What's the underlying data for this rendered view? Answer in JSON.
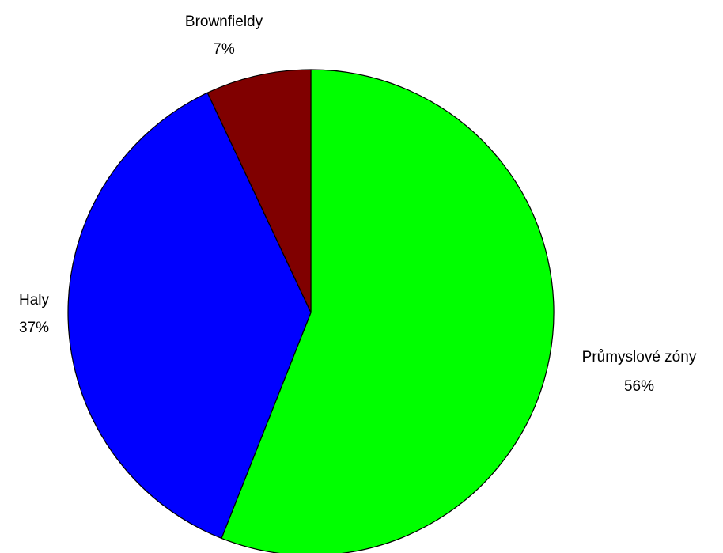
{
  "chart_data": {
    "type": "pie",
    "title": "",
    "slices": [
      {
        "label": "Průmyslové zóny",
        "value": 56,
        "value_label": "56%",
        "color": "#00ff00"
      },
      {
        "label": "Haly",
        "value": 37,
        "value_label": "37%",
        "color": "#0000ff"
      },
      {
        "label": "Brownfieldy",
        "value": 7,
        "value_label": "7%",
        "color": "#800000"
      }
    ],
    "start": "12 o'clock, clockwise",
    "legend": "none"
  }
}
